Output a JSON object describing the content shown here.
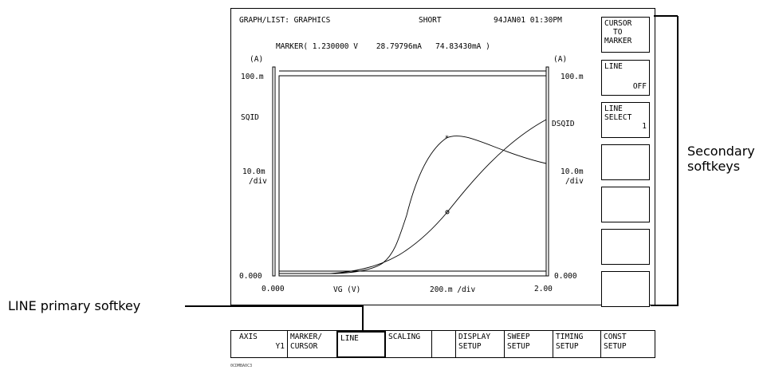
{
  "screen": {
    "title": "GRAPH/LIST: GRAPHICS",
    "mode": "SHORT",
    "datetime": "94JAN01 01:30PM",
    "marker_readout": "MARKER( 1.230000 V    28.79796mA   74.83430mA )"
  },
  "plot": {
    "left_unit": "(A)",
    "right_unit": "(A)",
    "left_top": "100.m",
    "right_top": "100.m",
    "left_name": "SQID",
    "right_name": "DSQID",
    "left_scale": "10.0m",
    "left_div": "/div",
    "right_scale": "10.0m",
    "right_div": "/div",
    "left_bottom": "0.000",
    "right_bottom": "0.000",
    "x_min": "0.000",
    "x_name": "VG (V)",
    "x_scale": "200.m /div",
    "x_max": "2.00"
  },
  "secondary_softkeys": [
    {
      "l1": "CURSOR",
      "l2": "TO",
      "l3": "MARKER"
    },
    {
      "l1": "LINE",
      "l2": "OFF"
    },
    {
      "l1": "LINE",
      "l2": "SELECT",
      "l3": "1"
    },
    {},
    {},
    {},
    {}
  ],
  "primary_softkeys": [
    {
      "l1": "AXIS",
      "l2": "Y1"
    },
    {
      "l1": "MARKER/",
      "l2": "CURSOR"
    },
    {
      "l1": "LINE",
      "l2": ""
    },
    {
      "l1": "SCALING",
      "l2": ""
    },
    {
      "l1": "DISPLAY",
      "l2": "SETUP"
    },
    {
      "l1": "SWEEP",
      "l2": "SETUP"
    },
    {
      "l1": "TIMING",
      "l2": "SETUP"
    },
    {
      "l1": "CONST",
      "l2": "SETUP"
    }
  ],
  "callouts": {
    "secondary_line1": "Secondary",
    "secondary_line2": "softkeys",
    "primary": "LINE primary softkey"
  },
  "footer_code": "0CDMBA0C3"
}
